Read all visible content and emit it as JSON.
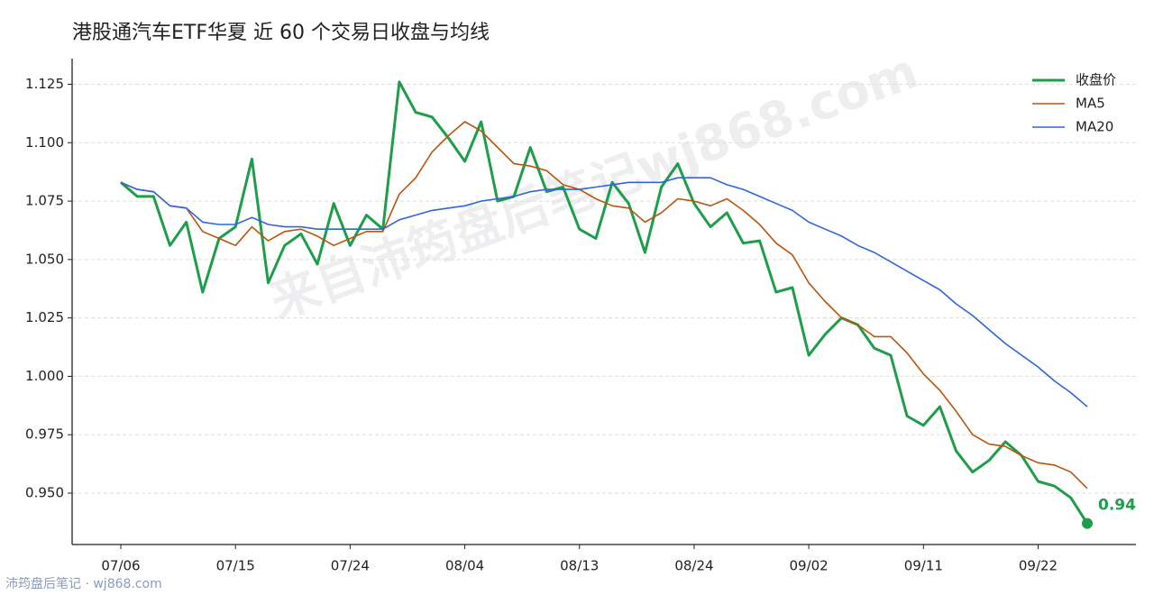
{
  "chart_data": {
    "type": "line",
    "title": "港股通汽车ETF华夏 近 60 个交易日收盘与均线",
    "watermark": "来自沛筠盘后笔记wj868.com",
    "footer": "沛筠盘后笔记 · wj868.com",
    "categories": [
      "07/06",
      null,
      null,
      null,
      null,
      null,
      null,
      "07/15",
      null,
      null,
      null,
      null,
      null,
      null,
      "07/24",
      null,
      null,
      null,
      null,
      null,
      null,
      "08/04",
      null,
      null,
      null,
      null,
      null,
      null,
      "08/13",
      null,
      null,
      null,
      null,
      null,
      null,
      "08/24",
      null,
      null,
      null,
      null,
      null,
      null,
      "09/02",
      null,
      null,
      null,
      null,
      null,
      null,
      "09/11",
      null,
      null,
      null,
      null,
      null,
      null,
      "09/22",
      null,
      null,
      null
    ],
    "ylim": [
      0.928,
      1.136
    ],
    "yticks": [
      {
        "value": 0.95,
        "label": "0.950"
      },
      0.975,
      {
        "value": 1.0,
        "label": "1.000"
      },
      1.025,
      {
        "value": 1.05,
        "label": "1.050"
      },
      1.075,
      {
        "value": 1.1,
        "label": "1.100"
      },
      1.125
    ],
    "grid": true,
    "legend": "upper right",
    "series": [
      {
        "name": "收盘价",
        "color": "#1e9e4a",
        "width": 3,
        "values": [
          1.083,
          1.077,
          1.077,
          1.056,
          1.066,
          1.036,
          1.059,
          1.064,
          1.093,
          1.04,
          1.056,
          1.061,
          1.048,
          1.074,
          1.056,
          1.069,
          1.063,
          1.126,
          1.113,
          1.111,
          1.102,
          1.092,
          1.109,
          1.075,
          1.077,
          1.098,
          1.079,
          1.081,
          1.063,
          1.059,
          1.083,
          1.074,
          1.053,
          1.081,
          1.091,
          1.074,
          1.064,
          1.07,
          1.057,
          1.058,
          1.036,
          1.038,
          1.009,
          1.018,
          1.025,
          1.022,
          1.012,
          1.009,
          0.983,
          0.979,
          0.987,
          0.968,
          0.959,
          0.964,
          0.972,
          0.966,
          0.955,
          0.953,
          0.948,
          0.937
        ],
        "value_labels": [
          null,
          null,
          null,
          null,
          null,
          null,
          null,
          null,
          null,
          null,
          null,
          null,
          null,
          null,
          null,
          null,
          null,
          null,
          null,
          null,
          null,
          null,
          null,
          null,
          null,
          null,
          null,
          null,
          null,
          null,
          null,
          null,
          null,
          null,
          null,
          null,
          null,
          null,
          null,
          null,
          null,
          null,
          null,
          null,
          null,
          null,
          null,
          null,
          null,
          null,
          null,
          null,
          null,
          null,
          null,
          null,
          null,
          null,
          null,
          "0.94"
        ]
      },
      {
        "name": "MA5",
        "color": "#b9560f",
        "width": 1.6,
        "values": [
          1.083,
          1.08,
          1.079,
          1.073,
          1.072,
          1.062,
          1.059,
          1.056,
          1.064,
          1.058,
          1.062,
          1.063,
          1.06,
          1.056,
          1.059,
          1.062,
          1.062,
          1.078,
          1.085,
          1.096,
          1.103,
          1.109,
          1.105,
          1.098,
          1.091,
          1.09,
          1.088,
          1.082,
          1.08,
          1.076,
          1.073,
          1.072,
          1.066,
          1.07,
          1.076,
          1.075,
          1.073,
          1.076,
          1.071,
          1.065,
          1.057,
          1.052,
          1.04,
          1.032,
          1.025,
          1.022,
          1.017,
          1.017,
          1.01,
          1.001,
          0.994,
          0.985,
          0.975,
          0.971,
          0.97,
          0.966,
          0.963,
          0.962,
          0.959,
          0.952
        ]
      },
      {
        "name": "MA20",
        "color": "#2f66de",
        "width": 1.6,
        "values": [
          1.083,
          1.08,
          1.079,
          1.073,
          1.072,
          1.066,
          1.065,
          1.065,
          1.068,
          1.065,
          1.064,
          1.064,
          1.063,
          1.063,
          1.063,
          1.063,
          1.063,
          1.067,
          1.069,
          1.071,
          1.072,
          1.073,
          1.075,
          1.076,
          1.077,
          1.079,
          1.08,
          1.08,
          1.08,
          1.081,
          1.082,
          1.083,
          1.083,
          1.083,
          1.085,
          1.085,
          1.085,
          1.082,
          1.08,
          1.077,
          1.074,
          1.071,
          1.066,
          1.063,
          1.06,
          1.056,
          1.053,
          1.049,
          1.045,
          1.041,
          1.037,
          1.031,
          1.026,
          1.02,
          1.014,
          1.009,
          1.004,
          0.998,
          0.993,
          0.987
        ]
      }
    ]
  }
}
